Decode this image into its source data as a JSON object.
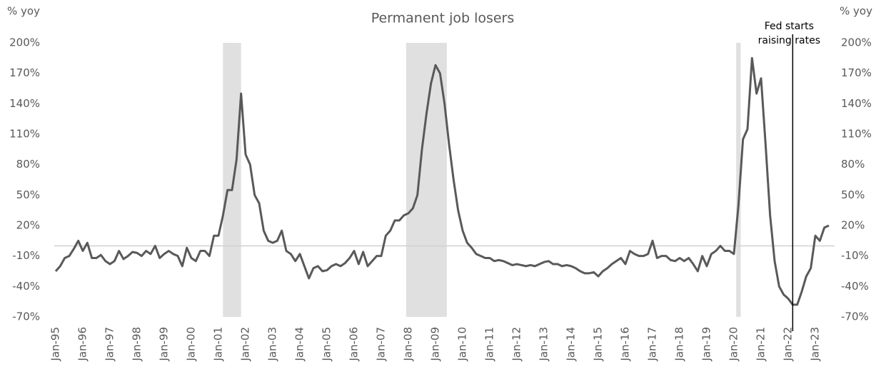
{
  "chart_data": {
    "type": "line",
    "title": "Permanent job losers",
    "ylabel": "% yoy",
    "y2label": "% yoy",
    "categories": [
      "Jan-95",
      null,
      null,
      null,
      null,
      null,
      "Jan-96",
      null,
      null,
      null,
      null,
      null,
      "Jan-97",
      null,
      null,
      null,
      null,
      null,
      "Jan-98",
      null,
      null,
      null,
      null,
      null,
      "Jan-99",
      null,
      null,
      null,
      null,
      null,
      "Jan-00",
      null,
      null,
      null,
      null,
      null,
      "Jan-01",
      null,
      null,
      null,
      null,
      null,
      "Jan-02",
      null,
      null,
      null,
      null,
      null,
      "Jan-03",
      null,
      null,
      null,
      null,
      null,
      "Jan-04",
      null,
      null,
      null,
      null,
      null,
      "Jan-05",
      null,
      null,
      null,
      null,
      null,
      "Jan-06",
      null,
      null,
      null,
      null,
      null,
      "Jan-07",
      null,
      null,
      null,
      null,
      null,
      "Jan-08",
      null,
      null,
      null,
      null,
      null,
      "Jan-09",
      null,
      null,
      null,
      null,
      null,
      "Jan-10",
      null,
      null,
      null,
      null,
      null,
      "Jan-11",
      null,
      null,
      null,
      null,
      null,
      "Jan-12",
      null,
      null,
      null,
      null,
      null,
      "Jan-13",
      null,
      null,
      null,
      null,
      null,
      "Jan-14",
      null,
      null,
      null,
      null,
      null,
      "Jan-15",
      null,
      null,
      null,
      null,
      null,
      "Jan-16",
      null,
      null,
      null,
      null,
      null,
      "Jan-17",
      null,
      null,
      null,
      null,
      null,
      "Jan-18",
      null,
      null,
      null,
      null,
      null,
      "Jan-19",
      null,
      null,
      null,
      null,
      null,
      "Jan-20",
      null,
      null,
      null,
      null,
      null,
      "Jan-21",
      null,
      null,
      null,
      null,
      null,
      "Jan-22",
      null,
      null,
      null,
      null,
      null,
      "Jan-23",
      null,
      null,
      null
    ],
    "series": [
      {
        "name": "Permanent job losers",
        "color": "#595959",
        "values": [
          -25,
          -20,
          -12,
          -10,
          -3,
          5,
          -5,
          3,
          -12,
          -12,
          -9,
          -15,
          -18,
          -15,
          -5,
          -13,
          -10,
          -6,
          -7,
          -10,
          -5,
          -8,
          0,
          -12,
          -8,
          -5,
          -8,
          -10,
          -20,
          -2,
          -12,
          -15,
          -5,
          -5,
          -10,
          10,
          10,
          30,
          55,
          55,
          85,
          150,
          90,
          80,
          50,
          42,
          15,
          5,
          3,
          5,
          15,
          -5,
          -8,
          -15,
          -8,
          -20,
          -32,
          -22,
          -20,
          -25,
          -24,
          -20,
          -18,
          -20,
          -17,
          -12,
          -5,
          -18,
          -6,
          -20,
          -15,
          -10,
          -10,
          10,
          15,
          25,
          25,
          30,
          32,
          37,
          50,
          95,
          130,
          160,
          178,
          170,
          140,
          100,
          65,
          35,
          15,
          3,
          -2,
          -8,
          -10,
          -12,
          -12,
          -15,
          -14,
          -15,
          -17,
          -19,
          -18,
          -19,
          -20,
          -19,
          -20,
          -18,
          -16,
          -15,
          -18,
          -18,
          -20,
          -19,
          -20,
          -22,
          -25,
          -27,
          -27,
          -26,
          -30,
          -25,
          -22,
          -18,
          -15,
          -12,
          -18,
          -5,
          -8,
          -10,
          -10,
          -8,
          5,
          -12,
          -10,
          -10,
          -14,
          -15,
          -12,
          -15,
          -12,
          -18,
          -25,
          -10,
          -20,
          -8,
          -5,
          0,
          -5,
          -5,
          -8,
          40,
          105,
          115,
          185,
          150,
          165,
          100,
          30,
          -15,
          -40,
          -48,
          -52,
          -58,
          -58,
          -45,
          -30,
          -22,
          10,
          5,
          18,
          20
        ]
      }
    ],
    "ylim": [
      -70,
      200
    ],
    "yticks": [
      {
        "value": -70,
        "label": "-70%"
      },
      {
        "value": -40,
        "label": "-40%"
      },
      {
        "value": -10,
        "label": "-10%"
      },
      {
        "value": 20,
        "label": "20%"
      },
      {
        "value": 50,
        "label": "50%"
      },
      {
        "value": 80,
        "label": "80%"
      },
      {
        "value": 110,
        "label": "110%"
      },
      {
        "value": 140,
        "label": "140%"
      },
      {
        "value": 170,
        "label": "170%"
      },
      {
        "value": 200,
        "label": "200%"
      }
    ],
    "y2lim": [
      -70,
      200
    ],
    "y2ticks": [
      {
        "value": -70,
        "label": "-70%"
      },
      {
        "value": -40,
        "label": "-40%"
      },
      {
        "value": -10,
        "label": "-10%"
      },
      {
        "value": 20,
        "label": "20%"
      },
      {
        "value": 50,
        "label": "50%"
      },
      {
        "value": 80,
        "label": "80%"
      },
      {
        "value": 110,
        "label": "110%"
      },
      {
        "value": 140,
        "label": "140%"
      },
      {
        "value": 170,
        "label": "170%"
      },
      {
        "value": 200,
        "label": "200%"
      }
    ],
    "zero_line": 0,
    "shaded_periods": [
      {
        "start": "2001-03",
        "end": "2001-11",
        "color": "#e0e0e0"
      },
      {
        "start": "2007-12",
        "end": "2009-06",
        "color": "#e0e0e0"
      },
      {
        "start": "2020-02",
        "end": "2020-04",
        "color": "#e0e0e0"
      }
    ],
    "annotations": [
      {
        "text": [
          "Fed starts",
          "raising rates"
        ],
        "date": "2022-03"
      }
    ]
  }
}
